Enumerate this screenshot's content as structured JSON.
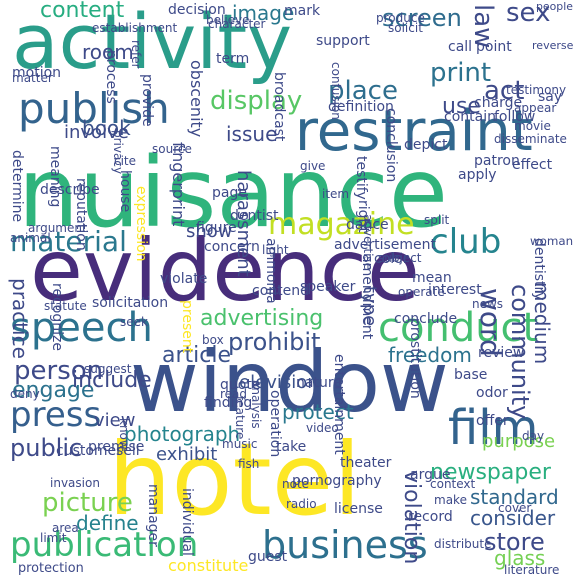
{
  "background_color": "#ffffff",
  "palette": [
    "#440154",
    "#3b528b",
    "#21918c",
    "#5ec962",
    "#fde725"
  ],
  "words": [
    {
      "text": "nuisance",
      "color": "#2fb47c",
      "vertical": false
    },
    {
      "text": "activity",
      "color": "#2a9d8a",
      "vertical": false
    },
    {
      "text": "evidence",
      "color": "#472d7b",
      "vertical": false
    },
    {
      "text": "window",
      "color": "#3b528b",
      "vertical": false
    },
    {
      "text": "hotel",
      "color": "#fde725",
      "vertical": false
    },
    {
      "text": "restraint",
      "color": "#31688e",
      "vertical": false
    },
    {
      "text": "publish",
      "color": "#33638d",
      "vertical": false
    },
    {
      "text": "conduct",
      "color": "#44bf70",
      "vertical": false
    },
    {
      "text": "speech",
      "color": "#2c728e",
      "vertical": false
    },
    {
      "text": "business",
      "color": "#2d708e",
      "vertical": false
    },
    {
      "text": "publication",
      "color": "#3aba76",
      "vertical": false
    },
    {
      "text": "film",
      "color": "#33638d",
      "vertical": false
    },
    {
      "text": "magazine",
      "color": "#c2df23",
      "vertical": false
    },
    {
      "text": "material",
      "color": "#2a788e",
      "vertical": false
    },
    {
      "text": "club",
      "color": "#25848e",
      "vertical": false
    },
    {
      "text": "press",
      "color": "#355f8d",
      "vertical": false
    },
    {
      "text": "person",
      "color": "#3e4a89",
      "vertical": false
    },
    {
      "text": "picture",
      "color": "#7ad151",
      "vertical": false
    },
    {
      "text": "display",
      "color": "#58c765",
      "vertical": false
    },
    {
      "text": "print",
      "color": "#2c728e",
      "vertical": false
    },
    {
      "text": "act",
      "color": "#3e4a89",
      "vertical": false
    },
    {
      "text": "content",
      "color": "#27ad81",
      "vertical": false
    },
    {
      "text": "screen",
      "color": "#2f6c8e",
      "vertical": false
    },
    {
      "text": "place",
      "color": "#2e6e8e",
      "vertical": false
    },
    {
      "text": "article",
      "color": "#3b528b",
      "vertical": false
    },
    {
      "text": "prohibit",
      "color": "#3b528b",
      "vertical": false
    },
    {
      "text": "advertising",
      "color": "#4ac16d",
      "vertical": false
    },
    {
      "text": "engage",
      "color": "#2c728e",
      "vertical": false
    },
    {
      "text": "include",
      "color": "#3e4a89",
      "vertical": false
    },
    {
      "text": "freedom",
      "color": "#2c728e",
      "vertical": false
    },
    {
      "text": "photograph",
      "color": "#25848e",
      "vertical": false
    },
    {
      "text": "protect",
      "color": "#2a788e",
      "vertical": false
    },
    {
      "text": "newspaper",
      "color": "#29af7f",
      "vertical": false
    },
    {
      "text": "public",
      "color": "#3e4a89",
      "vertical": false
    },
    {
      "text": "standard",
      "color": "#31688e",
      "vertical": false
    },
    {
      "text": "store",
      "color": "#3e4a89",
      "vertical": false
    },
    {
      "text": "define",
      "color": "#26828e",
      "vertical": false
    },
    {
      "text": "consider",
      "color": "#39568c",
      "vertical": false
    },
    {
      "text": "view",
      "color": "#3e4a89",
      "vertical": false
    },
    {
      "text": "exhibit",
      "color": "#3b528b",
      "vertical": false
    },
    {
      "text": "room",
      "color": "#3e4a89",
      "vertical": false
    },
    {
      "text": "book",
      "color": "#3b528b",
      "vertical": false
    },
    {
      "text": "issue",
      "color": "#3e4a89",
      "vertical": false
    },
    {
      "text": "use",
      "color": "#3e4a89",
      "vertical": false
    },
    {
      "text": "image",
      "color": "#2a788e",
      "vertical": false
    },
    {
      "text": "show",
      "color": "#3e4a89",
      "vertical": false
    },
    {
      "text": "involve",
      "color": "#3e4a89",
      "vertical": false
    },
    {
      "text": "television",
      "color": "#3b528b",
      "vertical": false
    },
    {
      "text": "advertisement",
      "color": "#3e4a89",
      "vertical": false
    },
    {
      "text": "interest",
      "color": "#3e4a89",
      "vertical": false
    },
    {
      "text": "review",
      "color": "#3e4a89",
      "vertical": false
    },
    {
      "text": "nature",
      "color": "#3e4a89",
      "vertical": false
    },
    {
      "text": "pornography",
      "color": "#3e4a89",
      "vertical": false
    },
    {
      "text": "license",
      "color": "#3e4a89",
      "vertical": false
    },
    {
      "text": "glass",
      "color": "#75d054",
      "vertical": false
    },
    {
      "text": "law",
      "color": "#3e4a89",
      "vertical": true
    },
    {
      "text": "sex",
      "color": "#3e4a89",
      "vertical": false
    },
    {
      "text": "word",
      "color": "#3e4a89",
      "vertical": true
    },
    {
      "text": "community",
      "color": "#3e4a89",
      "vertical": true
    },
    {
      "text": "practice",
      "color": "#3e4a89",
      "vertical": true
    },
    {
      "text": "medium",
      "color": "#3e4a89",
      "vertical": true
    },
    {
      "text": "violation",
      "color": "#3e4a89",
      "vertical": true
    },
    {
      "text": "harassment",
      "color": "#3e4a89",
      "vertical": true
    },
    {
      "text": "concern",
      "color": "#3e4a89",
      "vertical": false
    },
    {
      "text": "theater",
      "color": "#3e4a89",
      "vertical": false
    },
    {
      "text": "offer",
      "color": "#3e4a89",
      "vertical": false
    },
    {
      "text": "purpose",
      "color": "#7ad151",
      "vertical": false
    },
    {
      "text": "take",
      "color": "#3e4a89",
      "vertical": false
    },
    {
      "text": "charge",
      "color": "#3e4a89",
      "vertical": false
    },
    {
      "text": "contain",
      "color": "#3e4a89",
      "vertical": false
    },
    {
      "text": "follow",
      "color": "#3e4a89",
      "vertical": false
    },
    {
      "text": "mean",
      "color": "#3e4a89",
      "vertical": false
    },
    {
      "text": "type",
      "color": "#3e4a89",
      "vertical": true
    },
    {
      "text": "decision",
      "color": "#3e4a89",
      "vertical": false
    },
    {
      "text": "mark",
      "color": "#3e4a89",
      "vertical": false
    },
    {
      "text": "support",
      "color": "#3e4a89",
      "vertical": false
    },
    {
      "text": "definition",
      "color": "#3e4a89",
      "vertical": false
    },
    {
      "text": "conclusion",
      "color": "#3e4a89",
      "vertical": true
    },
    {
      "text": "fingerprint",
      "color": "#3e4a89",
      "vertical": true
    },
    {
      "text": "apply",
      "color": "#3e4a89",
      "vertical": false
    },
    {
      "text": "effect",
      "color": "#3e4a89",
      "vertical": false
    },
    {
      "text": "patron",
      "color": "#3e4a89",
      "vertical": false
    },
    {
      "text": "depict",
      "color": "#3e4a89",
      "vertical": false
    },
    {
      "text": "testify",
      "color": "#3e4a89",
      "vertical": true
    },
    {
      "text": "dance",
      "color": "#3e4a89",
      "vertical": false
    },
    {
      "text": "conclude",
      "color": "#3e4a89",
      "vertical": false
    },
    {
      "text": "color",
      "color": "#3e4a89",
      "vertical": false
    },
    {
      "text": "base",
      "color": "#3e4a89",
      "vertical": false
    },
    {
      "text": "odor",
      "color": "#3e4a89",
      "vertical": false
    },
    {
      "text": "page",
      "color": "#3e4a89",
      "vertical": false
    },
    {
      "text": "dentist",
      "color": "#3e4a89",
      "vertical": false
    },
    {
      "text": "expression",
      "color": "#fde725",
      "vertical": true
    },
    {
      "text": "reputation",
      "color": "#3e4a89",
      "vertical": true
    },
    {
      "text": "describe",
      "color": "#3e4a89",
      "vertical": false
    },
    {
      "text": "determine",
      "color": "#3e4a89",
      "vertical": true
    },
    {
      "text": "meaning",
      "color": "#3e4a89",
      "vertical": true
    },
    {
      "text": "prostitution",
      "color": "#3e4a89",
      "vertical": true
    },
    {
      "text": "entertainment",
      "color": "#3e4a89",
      "vertical": true
    },
    {
      "text": "contend",
      "color": "#3e4a89",
      "vertical": false
    },
    {
      "text": "ammonia",
      "color": "#3e4a89",
      "vertical": true
    },
    {
      "text": "present",
      "color": "#fde725",
      "vertical": true
    },
    {
      "text": "violate",
      "color": "#3e4a89",
      "vertical": false
    },
    {
      "text": "operation",
      "color": "#3e4a89",
      "vertical": true
    },
    {
      "text": "manager",
      "color": "#3e4a89",
      "vertical": true
    },
    {
      "text": "individual",
      "color": "#3e4a89",
      "vertical": true
    },
    {
      "text": "premise",
      "color": "#3e4a89",
      "vertical": false
    },
    {
      "text": "sell",
      "color": "#3e4a89",
      "vertical": false
    },
    {
      "text": "customer",
      "color": "#3e4a89",
      "vertical": false
    },
    {
      "text": "invasion",
      "color": "#3e4a89",
      "vertical": false
    },
    {
      "text": "area",
      "color": "#3e4a89",
      "vertical": false
    },
    {
      "text": "limit",
      "color": "#3e4a89",
      "vertical": false
    },
    {
      "text": "protection",
      "color": "#3e4a89",
      "vertical": false
    },
    {
      "text": "constitute",
      "color": "#fde725",
      "vertical": false
    },
    {
      "text": "guest",
      "color": "#3e4a89",
      "vertical": false
    },
    {
      "text": "record",
      "color": "#3e4a89",
      "vertical": false
    },
    {
      "text": "argue",
      "color": "#3e4a89",
      "vertical": false
    },
    {
      "text": "people",
      "color": "#3e4a89",
      "vertical": false
    },
    {
      "text": "call",
      "color": "#3e4a89",
      "vertical": false
    },
    {
      "text": "point",
      "color": "#3e4a89",
      "vertical": false
    },
    {
      "text": "appear",
      "color": "#3e4a89",
      "vertical": false
    },
    {
      "text": "movie",
      "color": "#3e4a89",
      "vertical": false
    },
    {
      "text": "say",
      "color": "#3e4a89",
      "vertical": false
    },
    {
      "text": "obscenity",
      "color": "#3e4a89",
      "vertical": true
    },
    {
      "text": "establishment",
      "color": "#3e4a89",
      "vertical": false
    },
    {
      "text": "process",
      "color": "#3e4a89",
      "vertical": true
    },
    {
      "text": "matter",
      "color": "#3e4a89",
      "vertical": false
    },
    {
      "text": "motion",
      "color": "#3e4a89",
      "vertical": false
    },
    {
      "text": "provide",
      "color": "#3e4a89",
      "vertical": true
    },
    {
      "text": "term",
      "color": "#3e4a89",
      "vertical": false
    },
    {
      "text": "broadcast",
      "color": "#3e4a89",
      "vertical": true
    },
    {
      "text": "produce",
      "color": "#3e4a89",
      "vertical": false
    },
    {
      "text": "solicit",
      "color": "#3e4a89",
      "vertical": false
    },
    {
      "text": "reverse",
      "color": "#3e4a89",
      "vertical": false
    },
    {
      "text": "testimony",
      "color": "#3e4a89",
      "vertical": false
    },
    {
      "text": "disseminate",
      "color": "#3e4a89",
      "vertical": false
    },
    {
      "text": "privacy",
      "color": "#3e4a89",
      "vertical": true
    },
    {
      "text": "source",
      "color": "#3e4a89",
      "vertical": false
    },
    {
      "text": "cite",
      "color": "#3e4a89",
      "vertical": false
    },
    {
      "text": "house",
      "color": "#3e4a89",
      "vertical": true
    },
    {
      "text": "figure",
      "color": "#3e4a89",
      "vertical": false
    },
    {
      "text": "right",
      "color": "#3e4a89",
      "vertical": true
    },
    {
      "text": "give",
      "color": "#3e4a89",
      "vertical": false
    },
    {
      "text": "light",
      "color": "#3e4a89",
      "vertical": false
    },
    {
      "text": "woman",
      "color": "#3e4a89",
      "vertical": false
    },
    {
      "text": "dentistry",
      "color": "#3e4a89",
      "vertical": true
    },
    {
      "text": "subject",
      "color": "#3e4a89",
      "vertical": false
    },
    {
      "text": "amendment",
      "color": "#3e4a89",
      "vertical": true
    },
    {
      "text": "speaker",
      "color": "#3e4a89",
      "vertical": false
    },
    {
      "text": "operate",
      "color": "#3e4a89",
      "vertical": false
    },
    {
      "text": "news",
      "color": "#3e4a89",
      "vertical": false
    },
    {
      "text": "statute",
      "color": "#3e4a89",
      "vertical": false
    },
    {
      "text": "solicitation",
      "color": "#3e4a89",
      "vertical": false
    },
    {
      "text": "recognize",
      "color": "#3e4a89",
      "vertical": true
    },
    {
      "text": "seek",
      "color": "#3e4a89",
      "vertical": false
    },
    {
      "text": "box",
      "color": "#3e4a89",
      "vertical": false
    },
    {
      "text": "suggest",
      "color": "#3e4a89",
      "vertical": false
    },
    {
      "text": "deny",
      "color": "#3e4a89",
      "vertical": false
    },
    {
      "text": "read",
      "color": "#3e4a89",
      "vertical": false
    },
    {
      "text": "quote",
      "color": "#3e4a89",
      "vertical": false
    },
    {
      "text": "finding",
      "color": "#3e4a89",
      "vertical": false
    },
    {
      "text": "feature",
      "color": "#3e4a89",
      "vertical": true
    },
    {
      "text": "analysis",
      "color": "#3e4a89",
      "vertical": true
    },
    {
      "text": "video",
      "color": "#3e4a89",
      "vertical": false
    },
    {
      "text": "day",
      "color": "#3e4a89",
      "vertical": false
    },
    {
      "text": "know",
      "color": "#3e4a89",
      "vertical": true
    },
    {
      "text": "music",
      "color": "#3e4a89",
      "vertical": false
    },
    {
      "text": "fish",
      "color": "#3e4a89",
      "vertical": false
    },
    {
      "text": "note",
      "color": "#3e4a89",
      "vertical": false
    },
    {
      "text": "radio",
      "color": "#3e4a89",
      "vertical": false
    },
    {
      "text": "context",
      "color": "#3e4a89",
      "vertical": false
    },
    {
      "text": "make",
      "color": "#3e4a89",
      "vertical": false
    },
    {
      "text": "cover",
      "color": "#3e4a89",
      "vertical": false
    },
    {
      "text": "distribute",
      "color": "#3e4a89",
      "vertical": false
    },
    {
      "text": "literature",
      "color": "#3e4a89",
      "vertical": false
    },
    {
      "text": "believe",
      "color": "#3e4a89",
      "vertical": false
    },
    {
      "text": "refer",
      "color": "#3e4a89",
      "vertical": true
    },
    {
      "text": "animal",
      "color": "#3e4a89",
      "vertical": false
    },
    {
      "text": "argument",
      "color": "#3e4a89",
      "vertical": false
    },
    {
      "text": "advertise",
      "color": "#3e4a89",
      "vertical": true
    },
    {
      "text": "item",
      "color": "#3e4a89",
      "vertical": false
    },
    {
      "text": "split",
      "color": "#3e4a89",
      "vertical": false
    },
    {
      "text": "character",
      "color": "#3e4a89",
      "vertical": false
    },
    {
      "text": "confusion",
      "color": "#3e4a89",
      "vertical": true
    }
  ]
}
